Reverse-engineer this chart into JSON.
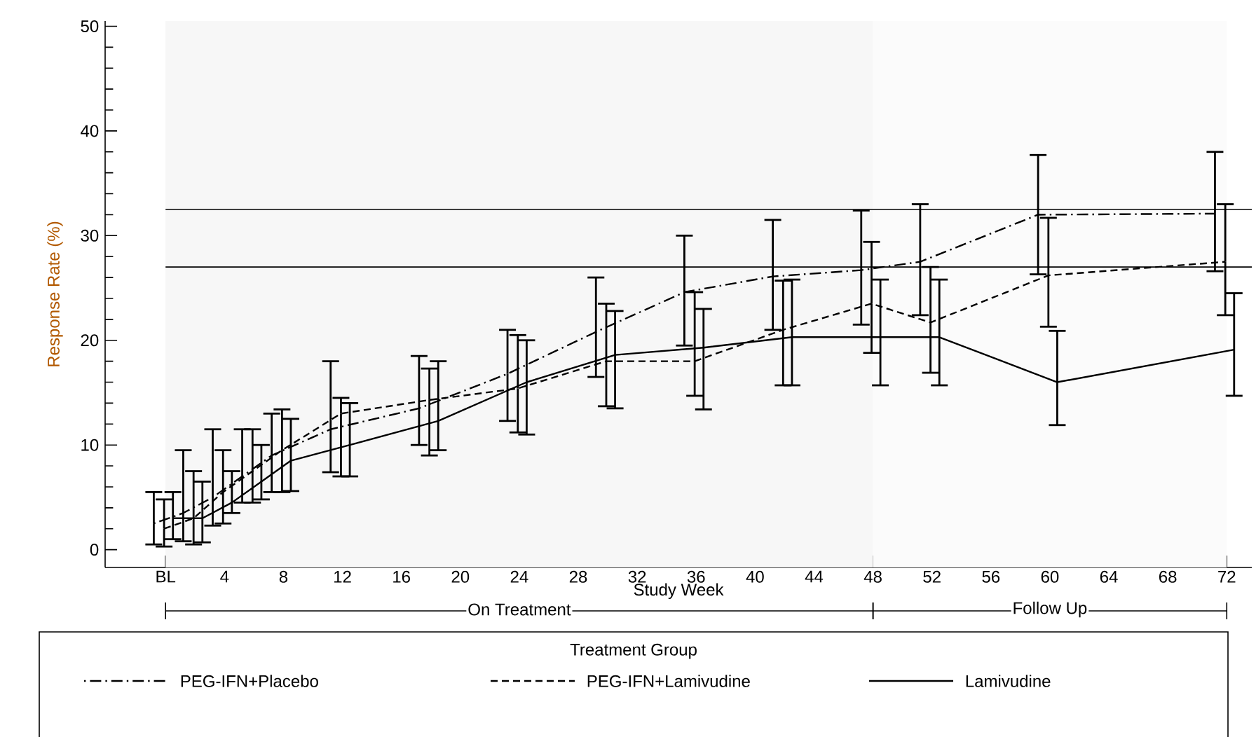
{
  "chart_data": {
    "type": "line",
    "xlabel": "Study Week",
    "ylabel": "Response Rate (%)",
    "legend_title": "Treatment Group",
    "legend": "bottom",
    "grid": false,
    "marker": "none",
    "xlim": [
      -4.1,
      73.7
    ],
    "ylim": [
      -1.7,
      50.5
    ],
    "xticks": [
      {
        "value": 0,
        "label": "BL"
      },
      4,
      8,
      12,
      16,
      20,
      24,
      28,
      32,
      36,
      40,
      44,
      48,
      52,
      56,
      60,
      64,
      68,
      72
    ],
    "yticks": [
      0,
      10,
      20,
      30,
      40,
      50
    ],
    "ref_lines": [
      {
        "axis": "y",
        "value": 32.5
      },
      {
        "axis": "y",
        "value": 27
      }
    ],
    "bands": [
      {
        "axis": "x",
        "from": 0,
        "to": 48,
        "label": "On Treatment",
        "color": "#f7f7f7"
      },
      {
        "axis": "x",
        "from": 48,
        "to": 72,
        "label": "Follow Up",
        "color": "#fbfbfb"
      }
    ],
    "series": [
      {
        "name": "PEG-IFN+Placebo",
        "color": "#000000",
        "line_style": "dashdot",
        "x": [
          -0.8,
          1.2,
          3.2,
          5.2,
          7.2,
          11.2,
          17.2,
          23.2,
          29.2,
          35.2,
          41.2,
          47.2,
          51.2,
          59.2,
          71.2
        ],
        "values": [
          2.5,
          3.5,
          5,
          7,
          9,
          11.5,
          13.5,
          16.8,
          20.8,
          24.6,
          26.1,
          26.7,
          27.5,
          32,
          32.1
        ],
        "errors": [
          [
            0.5,
            5.5
          ],
          [
            0.8,
            9.5
          ],
          [
            2.3,
            11.5
          ],
          [
            4.5,
            11.5
          ],
          [
            5.5,
            13
          ],
          [
            7.4,
            18
          ],
          [
            10,
            18.5
          ],
          [
            12.3,
            21
          ],
          [
            16.5,
            26
          ],
          [
            19.5,
            30
          ],
          [
            21,
            31.5
          ],
          [
            21.5,
            32.4
          ],
          [
            22.4,
            33
          ],
          [
            26.3,
            37.7
          ],
          [
            26.6,
            38
          ]
        ]
      },
      {
        "name": "PEG-IFN+Lamivudine",
        "color": "#000000",
        "line_style": "dashed",
        "x": [
          -0.1,
          1.9,
          3.9,
          5.9,
          7.9,
          11.9,
          17.9,
          23.9,
          29.9,
          35.9,
          41.9,
          47.9,
          51.9,
          59.9,
          71.9
        ],
        "values": [
          2,
          3,
          5.5,
          7.5,
          9.5,
          13,
          14.3,
          15.4,
          18,
          18,
          21,
          23.5,
          21.7,
          26.2,
          27.5
        ],
        "errors": [
          [
            0.3,
            4.8
          ],
          [
            0.5,
            7.5
          ],
          [
            2.5,
            9.5
          ],
          [
            4.5,
            11.5
          ],
          [
            5.5,
            13.4
          ],
          [
            7,
            14.5
          ],
          [
            9,
            17.3
          ],
          [
            11.2,
            20.5
          ],
          [
            13.7,
            23.5
          ],
          [
            14.7,
            24.6
          ],
          [
            15.7,
            25.7
          ],
          [
            18.8,
            29.4
          ],
          [
            16.9,
            27
          ],
          [
            21.3,
            31.7
          ],
          [
            22.4,
            33
          ]
        ]
      },
      {
        "name": "Lamivudine",
        "color": "#000000",
        "line_style": "solid",
        "x": [
          0.5,
          2.5,
          4.5,
          6.5,
          8.5,
          12.5,
          18.5,
          24.5,
          30.5,
          36.5,
          42.5,
          48.5,
          52.5,
          60.5,
          72.5
        ],
        "values": [
          3,
          3,
          4.5,
          6.5,
          8.5,
          10,
          12.3,
          16,
          18.6,
          19.3,
          20.3,
          20.3,
          20.3,
          16,
          19.1
        ],
        "errors": [
          [
            1,
            5.5
          ],
          [
            0.7,
            6.5
          ],
          [
            3.5,
            7.5
          ],
          [
            4.8,
            10
          ],
          [
            5.6,
            12.5
          ],
          [
            7,
            14
          ],
          [
            9.5,
            18
          ],
          [
            11,
            20
          ],
          [
            13.5,
            22.8
          ],
          [
            13.4,
            23
          ],
          [
            15.7,
            25.8
          ],
          [
            15.7,
            25.8
          ],
          [
            15.7,
            25.8
          ],
          [
            11.9,
            20.9
          ],
          [
            14.7,
            24.5
          ]
        ]
      }
    ]
  }
}
